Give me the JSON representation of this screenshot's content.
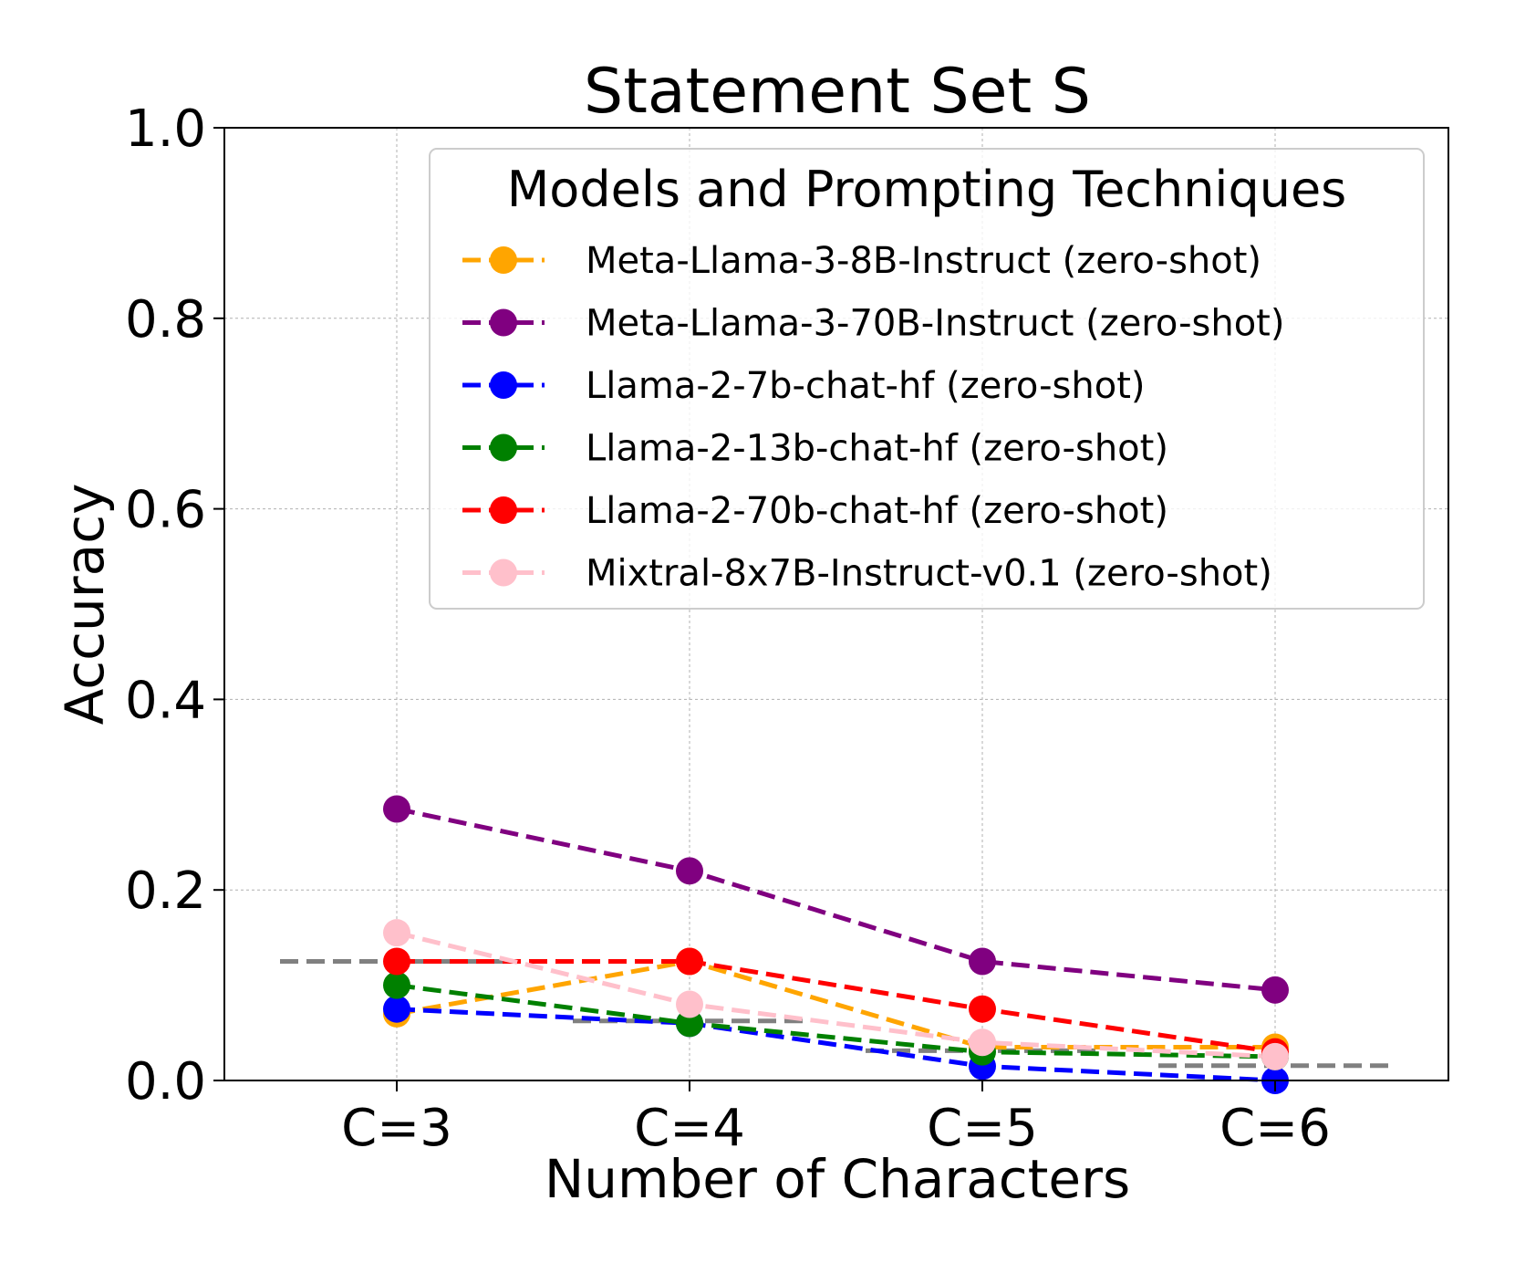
{
  "chart_data": {
    "type": "line",
    "title": "Statement Set S",
    "xlabel": "Number of Characters",
    "ylabel": "Accuracy",
    "categories": [
      "C=3",
      "C=4",
      "C=5",
      "C=6"
    ],
    "ylim": [
      0,
      1
    ],
    "yticks": [
      "0.0",
      "0.2",
      "0.4",
      "0.6",
      "0.8",
      "1.0"
    ],
    "grid": true,
    "legend": {
      "title": "Models and Prompting Techniques",
      "placement": "top-right"
    },
    "series": [
      {
        "name": "Meta-Llama-3-8B-Instruct (zero-shot)",
        "color": "#FFA500",
        "values": [
          0.07,
          0.125,
          0.035,
          0.035
        ]
      },
      {
        "name": "Meta-Llama-3-70B-Instruct (zero-shot)",
        "color": "#800080",
        "values": [
          0.285,
          0.22,
          0.125,
          0.095
        ]
      },
      {
        "name": "Llama-2-7b-chat-hf (zero-shot)",
        "color": "#0000FF",
        "values": [
          0.075,
          0.06,
          0.015,
          0.0
        ]
      },
      {
        "name": "Llama-2-13b-chat-hf (zero-shot)",
        "color": "#008000",
        "values": [
          0.1,
          0.06,
          0.03,
          0.025
        ]
      },
      {
        "name": "Llama-2-70b-chat-hf (zero-shot)",
        "color": "#FF0000",
        "values": [
          0.125,
          0.125,
          0.075,
          0.03
        ]
      },
      {
        "name": "Mixtral-8x7B-Instruct-v0.1 (zero-shot)",
        "color": "#FFC0CB",
        "values": [
          0.155,
          0.08,
          0.04,
          0.025
        ]
      }
    ],
    "baselines": {
      "color": "#808080",
      "values": [
        0.125,
        0.0625,
        0.03125,
        0.015625
      ]
    }
  }
}
